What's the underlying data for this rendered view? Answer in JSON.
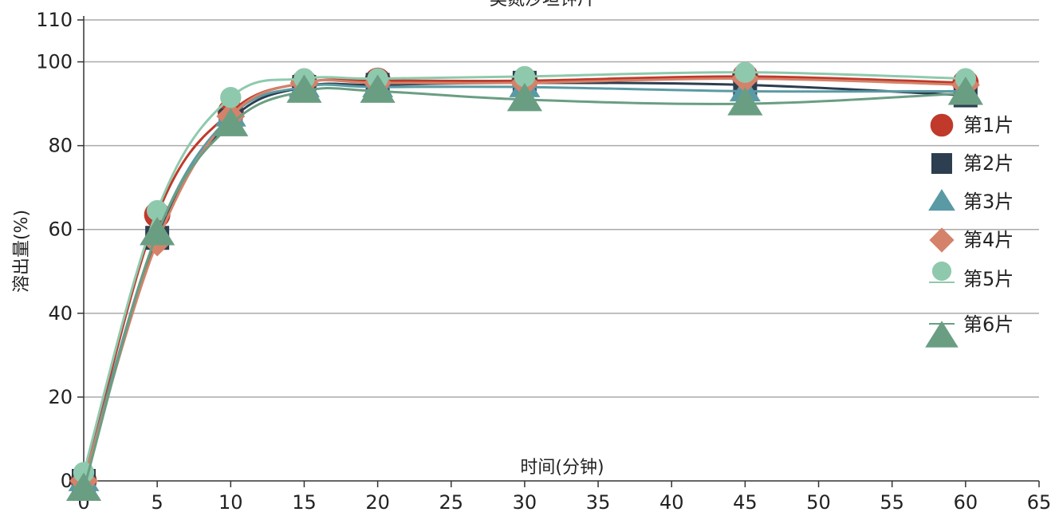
{
  "chart_data": {
    "type": "line",
    "title": "奥氮沙坦钾片",
    "xlabel": "时间(分钟)",
    "ylabel": "溶出量(%)",
    "xlim": [
      0,
      65
    ],
    "ylim": [
      0,
      110
    ],
    "x_ticks": [
      "0",
      "5",
      "10",
      "15",
      "20",
      "25",
      "30",
      "35",
      "40",
      "45",
      "50",
      "55",
      "60",
      "65"
    ],
    "y_ticks": [
      "0",
      "20",
      "40",
      "60",
      "80",
      "100",
      "110"
    ],
    "grid": true,
    "legend_position": "right",
    "x": [
      0,
      5,
      10,
      15,
      20,
      30,
      45,
      60
    ],
    "series": [
      {
        "name": "第1片",
        "marker": "circle",
        "color": "#c0392b",
        "values": [
          0,
          63.5,
          88,
          95,
          95.5,
          95.5,
          96.5,
          95
        ]
      },
      {
        "name": "第2片",
        "marker": "square",
        "color": "#2c3e50",
        "values": [
          0,
          58,
          86,
          94,
          94.5,
          95,
          94.5,
          92
        ]
      },
      {
        "name": "第3片",
        "marker": "triangle",
        "color": "#5a9aa5",
        "values": [
          0,
          59,
          87,
          94,
          94,
          94,
          93,
          93
        ]
      },
      {
        "name": "第4片",
        "marker": "diamond",
        "color": "#d4826a",
        "values": [
          0,
          57,
          87,
          95,
          95,
          95,
          96,
          94.5
        ]
      },
      {
        "name": "第5片",
        "marker": "circle-line",
        "color": "#8fc9ad",
        "values": [
          2,
          64.5,
          91.5,
          96,
          96,
          96.5,
          97.5,
          96
        ]
      },
      {
        "name": "第6片",
        "marker": "triangle-line",
        "color": "#6a9e82",
        "values": [
          -2,
          59,
          85,
          93,
          93,
          91,
          90,
          92.5
        ]
      }
    ]
  }
}
